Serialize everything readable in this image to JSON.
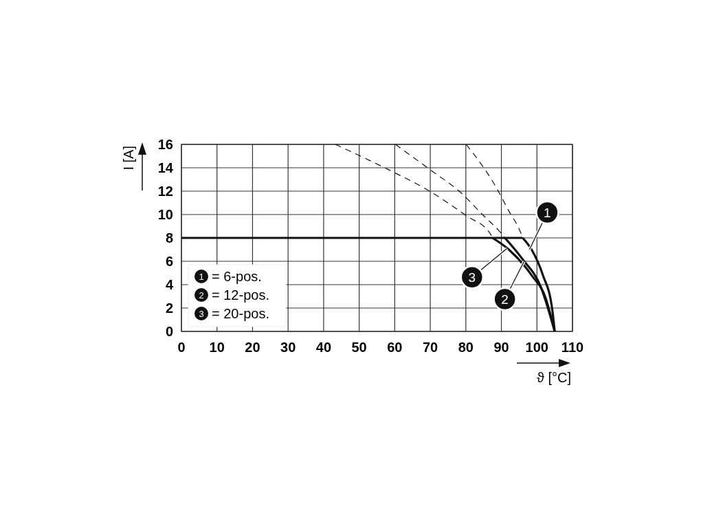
{
  "chart_data": {
    "type": "line",
    "xlabel": "ϑ [°C]",
    "ylabel": "I [A]",
    "xlim": [
      0,
      110
    ],
    "xticks": [
      0,
      10,
      20,
      30,
      40,
      50,
      60,
      70,
      80,
      90,
      100,
      110
    ],
    "ylim": [
      0,
      16
    ],
    "yticks": [
      0,
      2,
      4,
      6,
      8,
      10,
      12,
      14,
      16
    ],
    "grid": true,
    "legend": "bottom left",
    "line_style": "solid",
    "marker": "none",
    "series": [
      {
        "color": "#111111",
        "x": [
          0,
          96
        ],
        "values": [
          8,
          8
        ]
      },
      {
        "name": "= 6-pos.",
        "color": "#111111",
        "x": [
          96,
          98.5,
          101.7,
          104.3,
          105
        ],
        "values": [
          8,
          7,
          4.8,
          1.9,
          0
        ]
      },
      {
        "name": "= 12-pos.",
        "color": "#111111",
        "x": [
          91,
          95.9,
          101.1,
          105
        ],
        "values": [
          8,
          6.2,
          3.8,
          0
        ]
      },
      {
        "name": "= 20-pos.",
        "color": "#111111",
        "x": [
          87.5,
          92.1,
          98.5,
          102.4,
          105
        ],
        "values": [
          8,
          7,
          4.8,
          2.9,
          0
        ]
      },
      {
        "color": "#111111",
        "line_style": "dashed",
        "x": [
          80.1,
          88.2,
          92.1,
          95.3,
          96
        ],
        "values": [
          16,
          12.5,
          10.3,
          8.55,
          8
        ]
      },
      {
        "color": "#111111",
        "line_style": "dashed",
        "x": [
          60.2,
          70.1,
          78.5,
          85,
          89.5,
          91
        ],
        "values": [
          16,
          13.8,
          11.9,
          9.9,
          8.55,
          8
        ]
      },
      {
        "color": "#111111",
        "line_style": "dashed",
        "x": [
          43.3,
          58.5,
          69.8,
          80.1,
          86.9,
          87.5
        ],
        "values": [
          16,
          13.8,
          12,
          9.9,
          8.35,
          8
        ]
      }
    ],
    "annotations": [
      {
        "text": "1",
        "x": 97.9,
        "y": 7
      },
      {
        "text": "2",
        "x": 96.4,
        "y": 6
      },
      {
        "text": "3",
        "x": 91.6,
        "y": 7.1
      }
    ]
  }
}
